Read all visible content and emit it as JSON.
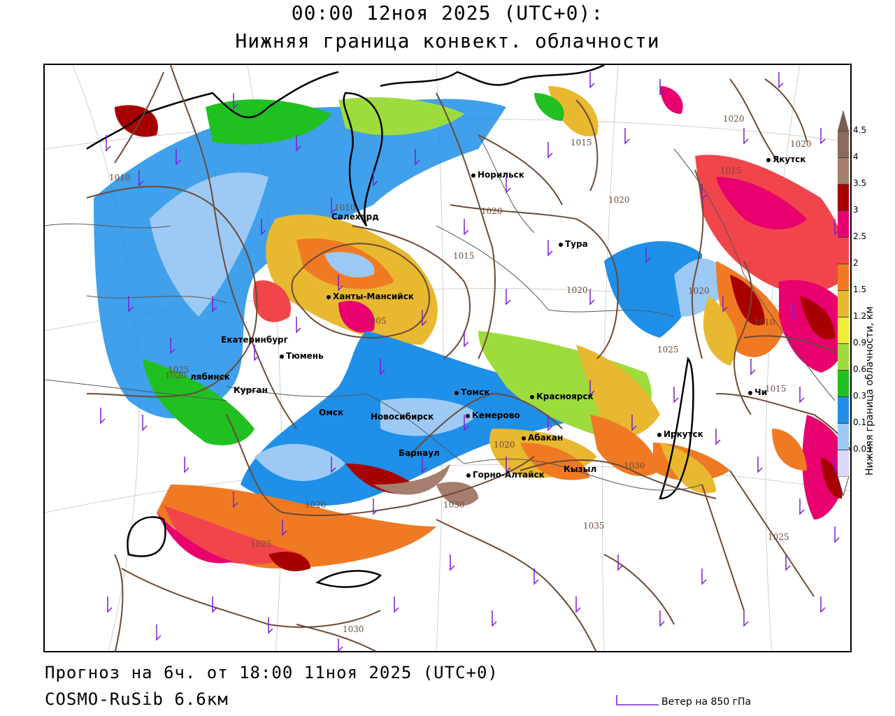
{
  "header": {
    "title_line1": "00:00 12ноя 2025 (UTC+0):",
    "title_line2": "Нижняя граница конвект. облачности"
  },
  "footer": {
    "forecast": "Прогноз на 6ч. от 18:00 11ноя 2025 (UTC+0)",
    "model": "COSMO-RuSib 6.6км",
    "wind_label": "Ветер на 850 гПа"
  },
  "legend": {
    "title": "Нижняя граница облачности, км",
    "items": [
      {
        "label": "4.5",
        "color": "#8a6a5a"
      },
      {
        "label": "4",
        "color": "#a57e6e"
      },
      {
        "label": "3.5",
        "color": "#a80000"
      },
      {
        "label": "3",
        "color": "#e8006f"
      },
      {
        "label": "2.5",
        "color": "#f0464b"
      },
      {
        "label": "2",
        "color": "#f07a23"
      },
      {
        "label": "1.5",
        "color": "#e8b830"
      },
      {
        "label": "1.2",
        "color": "#eeee36"
      },
      {
        "label": "0.9",
        "color": "#9ddc3c"
      },
      {
        "label": "0.6",
        "color": "#20c020"
      },
      {
        "label": "0.3",
        "color": "#1f8fe8"
      },
      {
        "label": "0.1",
        "color": "#9ccaf5"
      },
      {
        "label": "0.03",
        "color": "#d8d8f8"
      }
    ]
  },
  "cities": [
    {
      "name": "Норильск",
      "id": "norilsk"
    },
    {
      "name": "Салехард",
      "id": "salekhard"
    },
    {
      "name": "Тура",
      "id": "tura"
    },
    {
      "name": "Якутск",
      "id": "yakutsk"
    },
    {
      "name": "Ханты-Мансийск",
      "id": "khanty"
    },
    {
      "name": "Екатеринбург",
      "id": "ekat"
    },
    {
      "name": "Тюмень",
      "id": "tyumen"
    },
    {
      "name": "лябинск",
      "id": "chel"
    },
    {
      "name": "Курган",
      "id": "kurgan"
    },
    {
      "name": "Омск",
      "id": "omsk"
    },
    {
      "name": "Новосибирск",
      "id": "novosib"
    },
    {
      "name": "Томск",
      "id": "tomsk"
    },
    {
      "name": "Кемерово",
      "id": "kemerovo"
    },
    {
      "name": "Красноярск",
      "id": "krasn"
    },
    {
      "name": "Абакан",
      "id": "abakan"
    },
    {
      "name": "Барнаул",
      "id": "barnaul"
    },
    {
      "name": "Горно-Алтайск",
      "id": "gorno"
    },
    {
      "name": "Кызыл",
      "id": "kyzyl"
    },
    {
      "name": "Иркутск",
      "id": "irkutsk"
    },
    {
      "name": "Чи",
      "id": "chita"
    }
  ],
  "isobar_labels": [
    "1010",
    "1015",
    "1020",
    "1020",
    "1020",
    "1020",
    "1020",
    "1015",
    "1015",
    "1020",
    "1015",
    "1005",
    "1010",
    "1020",
    "1025",
    "1010",
    "1020",
    "1030",
    "1025",
    "1020",
    "1035",
    "1030",
    "1025",
    "1030",
    "1025"
  ]
}
